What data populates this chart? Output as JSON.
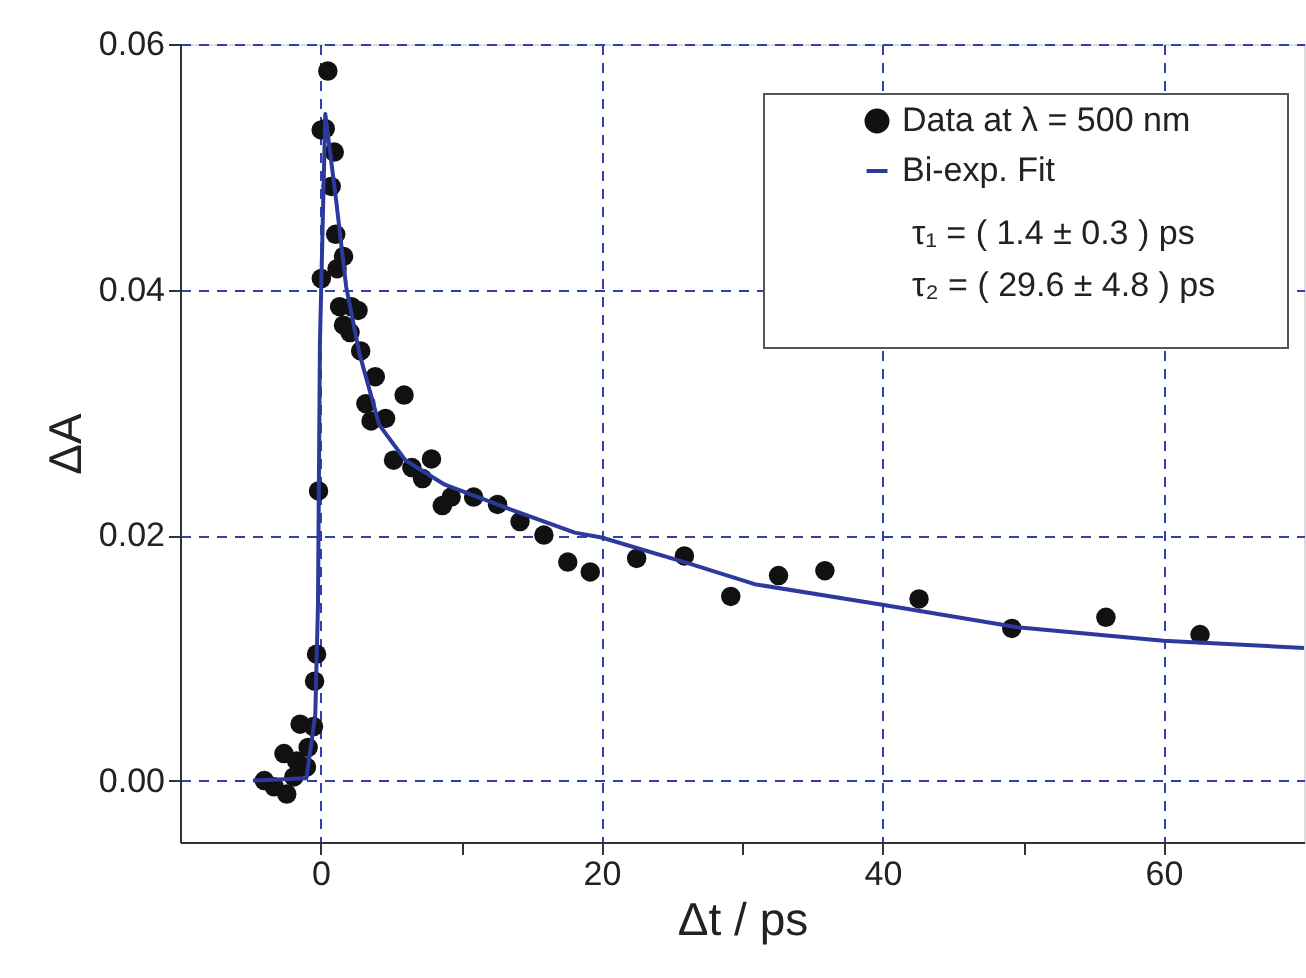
{
  "chart_data": {
    "type": "scatter",
    "xlabel": "Δt / ps",
    "ylabel": "ΔA",
    "xlim": [
      -10,
      70
    ],
    "ylim": [
      -0.005,
      0.06
    ],
    "xticks": [
      0,
      {
        "value": 10,
        "label": null
      },
      20,
      {
        "value": 30,
        "label": null
      },
      40,
      {
        "value": 50,
        "label": null
      },
      60
    ],
    "yticks": [
      {
        "value": 0,
        "label": "0.00"
      },
      {
        "value": 0.02,
        "label": "0.02"
      },
      {
        "value": 0.04,
        "label": "0.04"
      },
      {
        "value": 0.06,
        "label": "0.06"
      }
    ],
    "grid": true,
    "legend": "top right",
    "annotations": [
      "τ₁ = ( 1.4 ± 0.3 ) ps",
      "τ₂ = ( 29.6 ± 4.8 ) ps"
    ],
    "series": [
      {
        "name": "Data at λ = 500 nm",
        "type": "scatter",
        "color": "#111111",
        "marker": "circle",
        "x": [
          -4.0,
          -3.3,
          -2.6,
          -2.4,
          -1.9,
          -1.7,
          -1.45,
          -1.0,
          -0.88,
          -0.5,
          -0.42,
          -0.28,
          -0.14,
          0.05,
          0.06,
          0.34,
          0.52,
          0.76,
          0.98,
          1.08,
          1.18,
          1.36,
          1.64,
          1.64,
          2.1,
          2.2,
          2.67,
          2.86,
          3.23,
          3.6,
          3.9,
          4.63,
          5.2,
          5.95,
          6.5,
          7.26,
          7.9,
          8.67,
          9.3,
          10.9,
          12.6,
          14.2,
          15.9,
          17.6,
          19.2,
          22.5,
          25.9,
          29.2,
          32.6,
          35.9,
          42.6,
          49.2,
          55.9,
          62.6
        ],
        "values": [
          0.0,
          -0.0005,
          0.0022,
          -0.0011,
          0.0003,
          0.0016,
          0.0046,
          0.0011,
          0.0027,
          0.0044,
          0.0081,
          0.0103,
          0.0236,
          0.053,
          0.0409,
          0.0531,
          0.0578,
          0.0484,
          0.0512,
          0.0445,
          0.0417,
          0.0386,
          0.0427,
          0.0371,
          0.0365,
          0.0386,
          0.0383,
          0.035,
          0.0307,
          0.0293,
          0.0329,
          0.0295,
          0.0261,
          0.0314,
          0.0255,
          0.0246,
          0.0262,
          0.0224,
          0.0231,
          0.0231,
          0.0225,
          0.0211,
          0.02,
          0.0178,
          0.017,
          0.0181,
          0.0183,
          0.015,
          0.0167,
          0.0171,
          0.0148,
          0.0124,
          0.0133,
          0.0119
        ]
      },
      {
        "name": "Bi-exp. Fit",
        "type": "line",
        "color": "#2b3a9c",
        "line_style": "solid",
        "x": [
          -4.8,
          -1.0,
          -0.37,
          -0.18,
          -0.04,
          0.34,
          1.12,
          1.83,
          2.77,
          4.17,
          6.04,
          8.85,
          13.5,
          18.1,
          20,
          26.2,
          30.9,
          40.1,
          49.6,
          60,
          70
        ],
        "values": [
          0.0,
          0.0002,
          0.0054,
          0.0143,
          0.0357,
          0.0543,
          0.0472,
          0.0402,
          0.0348,
          0.029,
          0.0261,
          0.0241,
          0.0221,
          0.0202,
          0.0198,
          0.0177,
          0.016,
          0.0143,
          0.0125,
          0.0114,
          0.0108
        ]
      }
    ]
  }
}
